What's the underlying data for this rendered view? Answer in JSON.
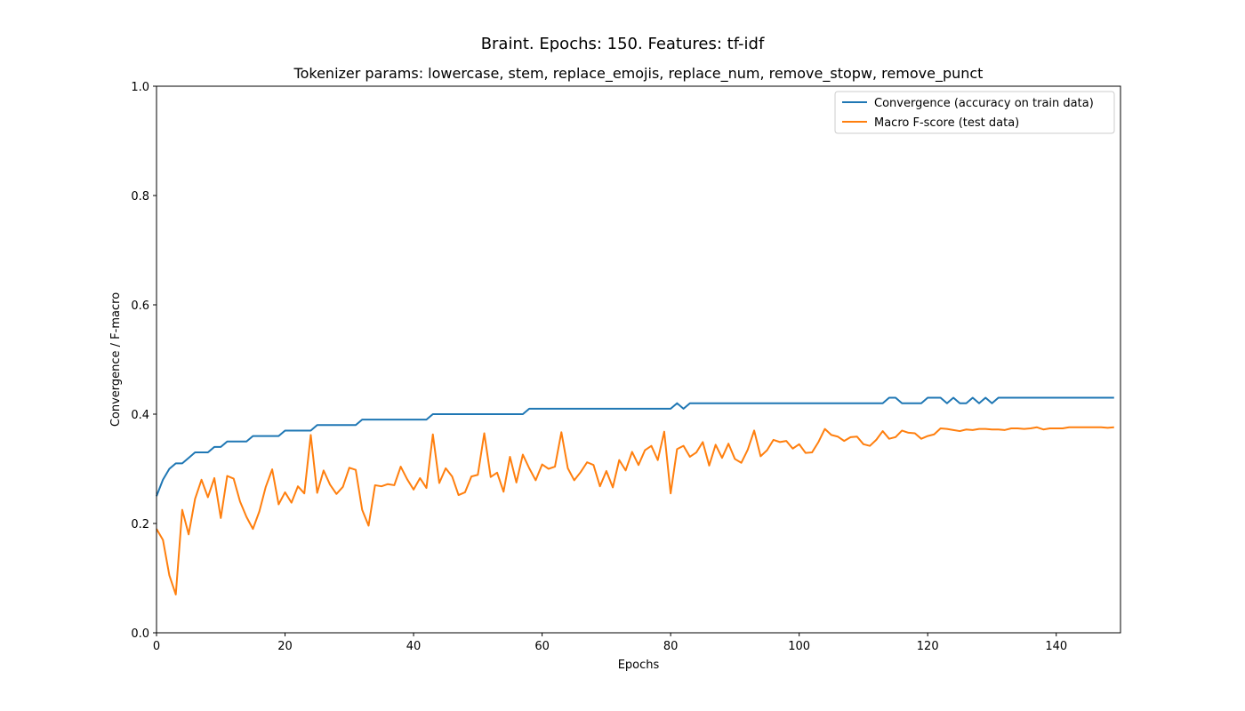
{
  "chart_data": {
    "type": "line",
    "title": "Braint. Epochs: 150. Features: tf-idf",
    "subtitle": "Tokenizer params: lowercase, stem, replace_emojis, replace_num, remove_stopw, remove_punct",
    "xlabel": "Epochs",
    "ylabel": "Convergence / F-macro",
    "xlim": [
      0,
      150
    ],
    "ylim": [
      0,
      1.0
    ],
    "xticks": [
      0,
      20,
      40,
      60,
      80,
      100,
      120,
      140
    ],
    "xtick_labels": [
      "0",
      "20",
      "40",
      "60",
      "80",
      "100",
      "120",
      "140"
    ],
    "yticks": [
      0,
      0.2,
      0.4,
      0.6,
      0.8,
      1.0
    ],
    "ytick_labels": [
      "0.0",
      "0.2",
      "0.4",
      "0.6",
      "0.8",
      "1.0"
    ],
    "grid": false,
    "legend_position": "top-right",
    "series": [
      {
        "name": "Convergence (accuracy on train data)",
        "color": "#1f77b4",
        "values": [
          0.25,
          0.28,
          0.3,
          0.31,
          0.31,
          0.32,
          0.33,
          0.33,
          0.33,
          0.34,
          0.34,
          0.35,
          0.35,
          0.35,
          0.35,
          0.36,
          0.36,
          0.36,
          0.36,
          0.36,
          0.37,
          0.37,
          0.37,
          0.37,
          0.37,
          0.38,
          0.38,
          0.38,
          0.38,
          0.38,
          0.38,
          0.38,
          0.39,
          0.39,
          0.39,
          0.39,
          0.39,
          0.39,
          0.39,
          0.39,
          0.39,
          0.39,
          0.39,
          0.4,
          0.4,
          0.4,
          0.4,
          0.4,
          0.4,
          0.4,
          0.4,
          0.4,
          0.4,
          0.4,
          0.4,
          0.4,
          0.4,
          0.4,
          0.41,
          0.41,
          0.41,
          0.41,
          0.41,
          0.41,
          0.41,
          0.41,
          0.41,
          0.41,
          0.41,
          0.41,
          0.41,
          0.41,
          0.41,
          0.41,
          0.41,
          0.41,
          0.41,
          0.41,
          0.41,
          0.41,
          0.41,
          0.42,
          0.41,
          0.42,
          0.42,
          0.42,
          0.42,
          0.42,
          0.42,
          0.42,
          0.42,
          0.42,
          0.42,
          0.42,
          0.42,
          0.42,
          0.42,
          0.42,
          0.42,
          0.42,
          0.42,
          0.42,
          0.42,
          0.42,
          0.42,
          0.42,
          0.42,
          0.42,
          0.42,
          0.42,
          0.42,
          0.42,
          0.42,
          0.42,
          0.43,
          0.43,
          0.42,
          0.42,
          0.42,
          0.42,
          0.43,
          0.43,
          0.43,
          0.42,
          0.43,
          0.42,
          0.42,
          0.43,
          0.42,
          0.43,
          0.42,
          0.43,
          0.43,
          0.43,
          0.43,
          0.43,
          0.43,
          0.43,
          0.43,
          0.43,
          0.43,
          0.43,
          0.43,
          0.43,
          0.43,
          0.43,
          0.43,
          0.43,
          0.43,
          0.43
        ]
      },
      {
        "name": "Macro F-score (test data)",
        "color": "#ff7f0e",
        "values": [
          0.19,
          0.17,
          0.105,
          0.07,
          0.225,
          0.18,
          0.245,
          0.28,
          0.248,
          0.283,
          0.21,
          0.287,
          0.282,
          0.24,
          0.212,
          0.19,
          0.222,
          0.267,
          0.299,
          0.235,
          0.257,
          0.238,
          0.268,
          0.255,
          0.362,
          0.256,
          0.297,
          0.271,
          0.254,
          0.267,
          0.302,
          0.298,
          0.225,
          0.196,
          0.27,
          0.268,
          0.272,
          0.27,
          0.304,
          0.281,
          0.262,
          0.283,
          0.265,
          0.363,
          0.274,
          0.301,
          0.286,
          0.252,
          0.257,
          0.286,
          0.289,
          0.365,
          0.285,
          0.293,
          0.258,
          0.322,
          0.275,
          0.326,
          0.301,
          0.279,
          0.308,
          0.3,
          0.304,
          0.367,
          0.301,
          0.279,
          0.294,
          0.312,
          0.307,
          0.268,
          0.296,
          0.266,
          0.316,
          0.297,
          0.331,
          0.307,
          0.334,
          0.342,
          0.316,
          0.368,
          0.255,
          0.336,
          0.342,
          0.322,
          0.33,
          0.349,
          0.306,
          0.344,
          0.32,
          0.346,
          0.318,
          0.311,
          0.335,
          0.37,
          0.323,
          0.334,
          0.353,
          0.349,
          0.351,
          0.337,
          0.345,
          0.329,
          0.33,
          0.349,
          0.373,
          0.362,
          0.359,
          0.351,
          0.358,
          0.359,
          0.345,
          0.342,
          0.353,
          0.369,
          0.355,
          0.358,
          0.37,
          0.366,
          0.365,
          0.355,
          0.36,
          0.363,
          0.374,
          0.373,
          0.371,
          0.369,
          0.372,
          0.371,
          0.373,
          0.373,
          0.372,
          0.372,
          0.371,
          0.374,
          0.374,
          0.373,
          0.374,
          0.376,
          0.372,
          0.374,
          0.374,
          0.374,
          0.376,
          0.376,
          0.376,
          0.376,
          0.376,
          0.376,
          0.375,
          0.376
        ]
      }
    ]
  }
}
